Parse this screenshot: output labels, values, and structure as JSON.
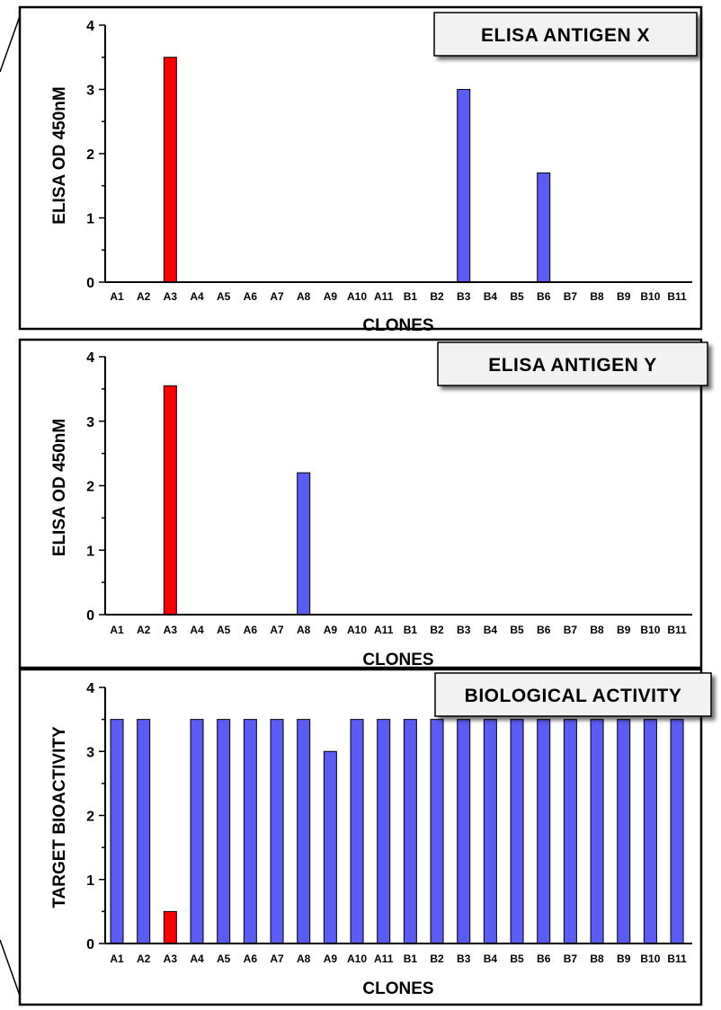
{
  "colors": {
    "highlight": "#ff0000",
    "bar": "#5b5bf5",
    "title_box": "#f2f2f2"
  },
  "chart_data": [
    {
      "type": "bar",
      "title": "ELISA ANTIGEN X",
      "xlabel": "CLONES",
      "ylabel": "ELISA OD 450nM",
      "ylim": [
        0,
        4
      ],
      "yticks": [
        "0",
        "1",
        "2",
        "3",
        "4"
      ],
      "categories": [
        "A1",
        "A2",
        "A3",
        "A4",
        "A5",
        "A6",
        "A7",
        "A8",
        "A9",
        "A10",
        "A11",
        "B1",
        "B2",
        "B3",
        "B4",
        "B5",
        "B6",
        "B7",
        "B8",
        "B9",
        "B10",
        "B11"
      ],
      "values": [
        0,
        0,
        3.5,
        0,
        0,
        0,
        0,
        0,
        0,
        0,
        0,
        0,
        0,
        3.0,
        0,
        0,
        1.7,
        0,
        0,
        0,
        0,
        0
      ],
      "highlight": [
        "A3"
      ],
      "legend": "top-right"
    },
    {
      "type": "bar",
      "title": "ELISA ANTIGEN Y",
      "xlabel": "CLONES",
      "ylabel": "ELISA OD 450nM",
      "ylim": [
        0,
        4
      ],
      "yticks": [
        "0",
        "1",
        "2",
        "3",
        "4"
      ],
      "categories": [
        "A1",
        "A2",
        "A3",
        "A4",
        "A5",
        "A6",
        "A7",
        "A8",
        "A9",
        "A10",
        "A11",
        "B1",
        "B2",
        "B3",
        "B4",
        "B5",
        "B6",
        "B7",
        "B8",
        "B9",
        "B10",
        "B11"
      ],
      "values": [
        0,
        0,
        3.55,
        0,
        0,
        0,
        0,
        2.2,
        0,
        0,
        0,
        0,
        0,
        0,
        0,
        0,
        0,
        0,
        0,
        0,
        0,
        0
      ],
      "highlight": [
        "A3"
      ],
      "legend": "top-right"
    },
    {
      "type": "bar",
      "title": "BIOLOGICAL ACTIVITY",
      "xlabel": "CLONES",
      "ylabel": "TARGET BIOACTIVITY",
      "ylim": [
        0,
        4
      ],
      "yticks": [
        "0",
        "1",
        "2",
        "3",
        "4"
      ],
      "categories": [
        "A1",
        "A2",
        "A3",
        "A4",
        "A5",
        "A6",
        "A7",
        "A8",
        "A9",
        "A10",
        "A11",
        "B1",
        "B2",
        "B3",
        "B4",
        "B5",
        "B6",
        "B7",
        "B8",
        "B9",
        "B10",
        "B11"
      ],
      "values": [
        3.5,
        3.5,
        0.5,
        3.5,
        3.5,
        3.5,
        3.5,
        3.5,
        3.0,
        3.5,
        3.5,
        3.5,
        3.5,
        3.5,
        3.5,
        3.5,
        3.5,
        3.5,
        3.5,
        3.5,
        3.5,
        3.5
      ],
      "highlight": [
        "A3"
      ],
      "legend": "top-right"
    }
  ]
}
